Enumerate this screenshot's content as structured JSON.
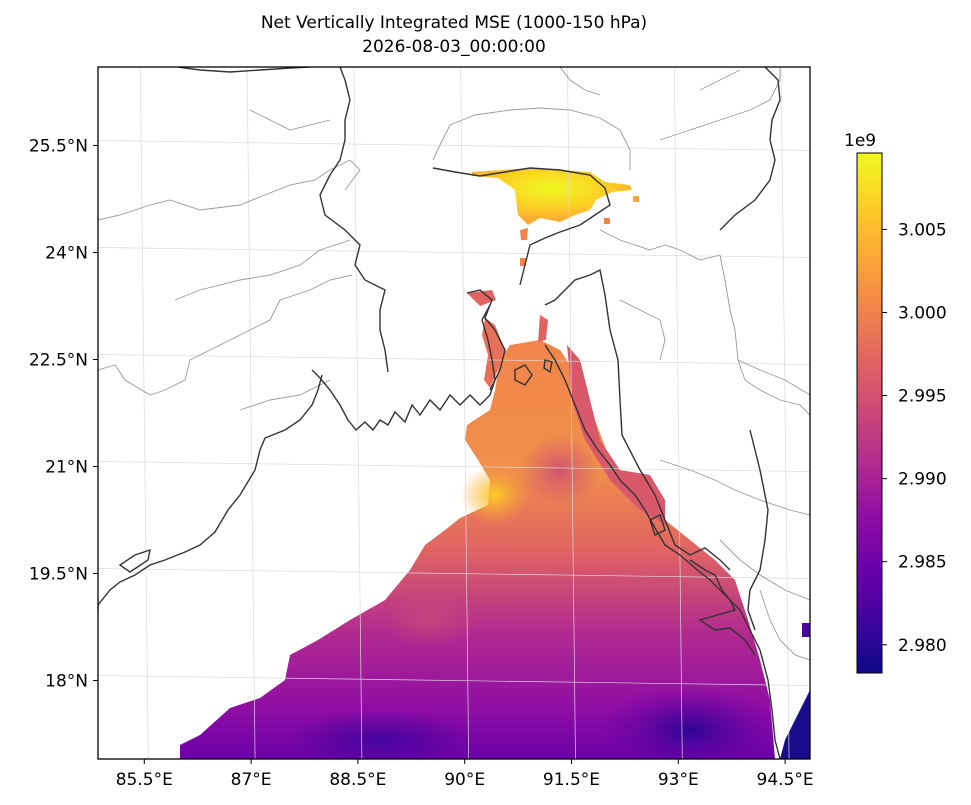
{
  "chart_data": {
    "type": "heatmap",
    "title": "Net Vertically Integrated MSE (1000-150 hPa)",
    "subtitle": "2026-08-03_00:00:00",
    "x_tick_labels": [
      "85.5°E",
      "87°E",
      "88.5°E",
      "90°E",
      "91.5°E",
      "93°E",
      "94.5°E"
    ],
    "x_ticks_deg": [
      85.5,
      87,
      88.5,
      90,
      91.5,
      93,
      94.5
    ],
    "y_tick_labels": [
      "25.5°N",
      "24°N",
      "22.5°N",
      "21°N",
      "19.5°N",
      "18°N"
    ],
    "y_ticks_deg": [
      25.5,
      24,
      22.5,
      21,
      19.5,
      18
    ],
    "lon_range": [
      84.85,
      94.85
    ],
    "lat_range": [
      16.9,
      26.6
    ],
    "grid": true,
    "colormap": "plasma",
    "colorbar": {
      "exponent_label": "1e9",
      "tick_labels": [
        "2.980",
        "2.985",
        "2.990",
        "2.995",
        "3.000",
        "3.005"
      ],
      "ticks": [
        2.98,
        2.985,
        2.99,
        2.995,
        3.0,
        3.005
      ],
      "range": [
        2.9783,
        3.0096
      ],
      "placement": "right"
    },
    "field_summary": {
      "max_region_value": 3.008,
      "min_region_value": 2.979,
      "sea_mean_value": 2.993
    }
  },
  "colors": {
    "coast": "#333333",
    "boundary": "#999999",
    "grid": "#d9d9d9",
    "plasma": [
      "#0d0887",
      "#41049d",
      "#6a00a8",
      "#8f0da4",
      "#b12a90",
      "#cc4778",
      "#e16462",
      "#f2844b",
      "#fca636",
      "#fcce25",
      "#f0f921"
    ]
  }
}
